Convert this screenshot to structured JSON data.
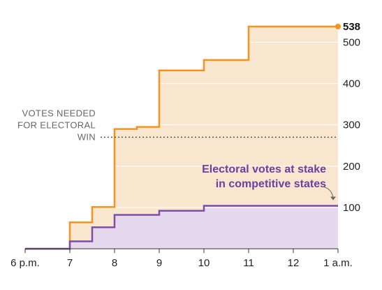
{
  "chart_data": {
    "type": "area",
    "x_ticks": [
      {
        "value": 18,
        "label": "6 p.m."
      },
      {
        "value": 19,
        "label": "7"
      },
      {
        "value": 20,
        "label": "8"
      },
      {
        "value": 21,
        "label": "9"
      },
      {
        "value": 22,
        "label": "10"
      },
      {
        "value": 23,
        "label": "11"
      },
      {
        "value": 24,
        "label": "12"
      },
      {
        "value": 25,
        "label": "1 a.m."
      }
    ],
    "y_ticks": [
      100,
      200,
      300,
      400,
      500
    ],
    "xlim": [
      18,
      25
    ],
    "ylim": [
      0,
      538
    ],
    "total_label": "538",
    "needed_line": {
      "value": 270,
      "label_lines": [
        "VOTES NEEDED",
        "FOR ELECTORAL",
        "WIN"
      ]
    },
    "competitive_label_lines": [
      "Electoral votes at stake",
      "in competitive states"
    ],
    "series": [
      {
        "color": "#f7921e",
        "fill": "#f9e6cf",
        "points": [
          [
            18,
            0
          ],
          [
            19,
            0
          ],
          [
            19,
            64
          ],
          [
            19.5,
            64
          ],
          [
            19.5,
            101
          ],
          [
            20,
            101
          ],
          [
            20,
            290
          ],
          [
            20.5,
            290
          ],
          [
            20.5,
            295
          ],
          [
            21,
            295
          ],
          [
            21,
            432
          ],
          [
            22,
            432
          ],
          [
            22,
            457
          ],
          [
            23,
            457
          ],
          [
            23,
            538
          ],
          [
            25,
            538
          ]
        ]
      },
      {
        "color": "#7b4fa8",
        "fill": "#e6d9ee",
        "points": [
          [
            18,
            0
          ],
          [
            19,
            0
          ],
          [
            19,
            18
          ],
          [
            19.5,
            18
          ],
          [
            19.5,
            52
          ],
          [
            20,
            52
          ],
          [
            20,
            82
          ],
          [
            21,
            82
          ],
          [
            21,
            92
          ],
          [
            22,
            92
          ],
          [
            22,
            104
          ],
          [
            25,
            104
          ]
        ]
      }
    ]
  }
}
